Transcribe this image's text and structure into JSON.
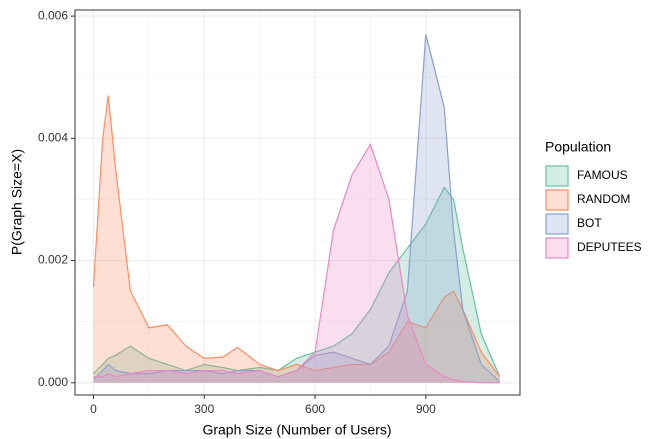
{
  "chart_data": {
    "type": "area",
    "xlabel": "Graph Size (Number of Users)",
    "ylabel": "P(Graph Size=X)",
    "legend_title": "Population",
    "legend": "right",
    "grid": true,
    "xlim": [
      -50,
      1155
    ],
    "ylim": [
      -0.0002,
      0.0061
    ],
    "xticks": [
      0,
      300,
      600,
      900
    ],
    "yticks": [
      {
        "value": 0,
        "label": "0.000"
      },
      {
        "value": 0.002,
        "label": "0.002"
      },
      {
        "value": 0.004,
        "label": "0.004"
      },
      {
        "value": 0.006,
        "label": "0.006"
      }
    ],
    "x": [
      0,
      25,
      40,
      60,
      100,
      150,
      200,
      250,
      300,
      350,
      390,
      450,
      500,
      550,
      600,
      650,
      700,
      750,
      800,
      850,
      900,
      950,
      975,
      1000,
      1050,
      1100
    ],
    "series": [
      {
        "name": "FAMOUS",
        "color": "#66c2a5",
        "values": [
          0.00015,
          0.0003,
          0.0004,
          0.00045,
          0.0006,
          0.0004,
          0.0003,
          0.0002,
          0.0003,
          0.00025,
          0.0002,
          0.00025,
          0.0002,
          0.0004,
          0.0005,
          0.0006,
          0.0008,
          0.0012,
          0.0018,
          0.0022,
          0.0026,
          0.0032,
          0.003,
          0.0022,
          0.0008,
          0.0001
        ]
      },
      {
        "name": "RANDOM",
        "color": "#fc8d62",
        "values": [
          0.00157,
          0.004,
          0.0047,
          0.0035,
          0.0015,
          0.0009,
          0.00095,
          0.0006,
          0.0004,
          0.00042,
          0.00058,
          0.0003,
          0.0002,
          0.0003,
          0.0002,
          0.00025,
          0.0003,
          0.0003,
          0.0005,
          0.001,
          0.0009,
          0.0014,
          0.0015,
          0.0012,
          0.0005,
          0.0001
        ]
      },
      {
        "name": "BOT",
        "color": "#8da0cb",
        "values": [
          5e-05,
          0.0002,
          0.0003,
          0.0002,
          0.00015,
          0.00015,
          0.0002,
          0.0002,
          0.0002,
          0.00015,
          0.0002,
          0.0002,
          0.0001,
          0.0002,
          0.00045,
          0.0005,
          0.0004,
          0.0003,
          0.0006,
          0.0015,
          0.0057,
          0.0045,
          0.0025,
          0.0012,
          0.0003,
          2e-05
        ]
      },
      {
        "name": "DEPUTEES",
        "color": "#e78ac3",
        "values": [
          0.0001,
          0.0001,
          0.00015,
          0.0001,
          0.00015,
          0.0002,
          0.0002,
          0.00015,
          0.0002,
          0.0002,
          0.00015,
          0.0002,
          0.0001,
          0.0002,
          0.0005,
          0.0025,
          0.0034,
          0.0039,
          0.003,
          0.0011,
          0.0003,
          0.0001,
          5e-05,
          2e-05,
          0,
          0
        ]
      }
    ]
  }
}
